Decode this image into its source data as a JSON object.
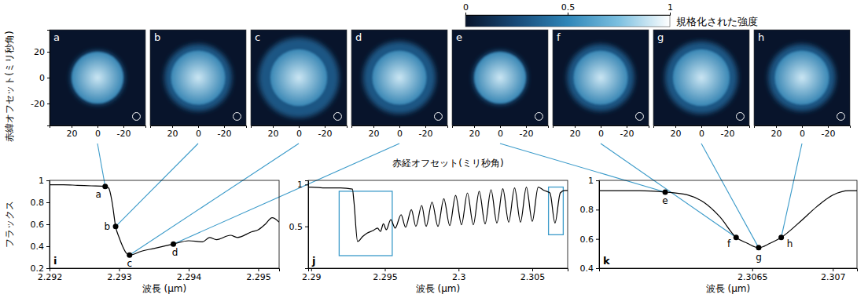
{
  "colorbar": {
    "label": "規格化された強度",
    "range": [
      0,
      1
    ],
    "ticks": [
      0,
      0.5,
      1
    ],
    "colors": [
      "#08142b",
      "#174a78",
      "#2f86b8",
      "#7cc0e0",
      "#ffffff"
    ]
  },
  "image_panels": {
    "x_label": "赤経オフセット(ミリ秒角)",
    "y_label": "赤緯オフセット(ミリ秒角)",
    "xlim": [
      37,
      -37
    ],
    "ylim": [
      -37,
      37
    ],
    "xticks": [
      20,
      0,
      -20
    ],
    "yticks": [
      20,
      0,
      -20
    ],
    "center_intensity": 0.9,
    "limb_intensity": 0.5,
    "halo_intensity": 0.3,
    "beam": {
      "x": -30,
      "y": -30,
      "radius": 3
    },
    "panels": [
      {
        "letter": "a",
        "disk_radius": 20,
        "halo_radius": 21
      },
      {
        "letter": "b",
        "disk_radius": 21,
        "halo_radius": 26
      },
      {
        "letter": "c",
        "disk_radius": 22,
        "halo_radius": 31
      },
      {
        "letter": "d",
        "disk_radius": 21,
        "halo_radius": 28
      },
      {
        "letter": "e",
        "disk_radius": 20,
        "halo_radius": 21
      },
      {
        "letter": "f",
        "disk_radius": 21,
        "halo_radius": 26
      },
      {
        "letter": "g",
        "disk_radius": 22,
        "halo_radius": 28
      },
      {
        "letter": "h",
        "disk_radius": 21,
        "halo_radius": 26
      }
    ]
  },
  "chart_data": [
    {
      "type": "line",
      "panel_label": "i",
      "x_label": "波長 (μm)",
      "y_label": "フラックス",
      "x": [
        2.292,
        2.2922,
        2.2924,
        2.2926,
        2.2928,
        2.29285,
        2.2929,
        2.29295,
        2.293,
        2.29305,
        2.2931,
        2.29315,
        2.2932,
        2.2933,
        2.2935,
        2.29378,
        2.294,
        2.2942,
        2.2943,
        2.2944,
        2.2946,
        2.2947,
        2.2949,
        2.295,
        2.2951,
        2.2952,
        2.2953
      ],
      "series": [
        {
          "color": "#000000",
          "values": [
            0.96,
            0.96,
            0.955,
            0.95,
            0.945,
            0.93,
            0.8,
            0.58,
            0.48,
            0.4,
            0.34,
            0.32,
            0.325,
            0.35,
            0.38,
            0.42,
            0.45,
            0.44,
            0.48,
            0.46,
            0.5,
            0.48,
            0.53,
            0.55,
            0.6,
            0.66,
            0.62
          ]
        }
      ],
      "xlim": [
        2.292,
        2.2953
      ],
      "ylim": [
        0.2,
        1
      ],
      "xticks": [
        2.292,
        2.293,
        2.294,
        2.295
      ],
      "yticks": [
        0.2,
        0.4,
        0.6,
        0.8,
        1
      ],
      "points": [
        {
          "label": "a",
          "x": 2.2928,
          "y": 0.945
        },
        {
          "label": "b",
          "x": 2.29295,
          "y": 0.58
        },
        {
          "label": "c",
          "x": 2.29315,
          "y": 0.32
        },
        {
          "label": "d",
          "x": 2.29378,
          "y": 0.42
        }
      ]
    },
    {
      "type": "line",
      "panel_label": "j",
      "x_label": "波長 (μm)",
      "x": [
        2.2898,
        2.29,
        2.291,
        2.292,
        2.2928,
        2.2929,
        2.29315,
        2.2935,
        2.2938,
        2.2942,
        2.2945,
        2.2947,
        2.2949,
        2.2951,
        2.2954,
        2.2957,
        2.2961,
        2.2964,
        2.2968,
        2.2971,
        2.2975,
        2.2978,
        2.2982,
        2.2986,
        2.299,
        2.2994,
        2.2998,
        2.3002,
        2.3006,
        2.301,
        2.3014,
        2.3018,
        2.3022,
        2.3026,
        2.303,
        2.3034,
        2.3038,
        2.3042,
        2.3046,
        2.305,
        2.3054,
        2.3058,
        2.3062,
        2.30654,
        2.3069,
        2.3072,
        2.3074
      ],
      "series": [
        {
          "color": "#000000",
          "values": [
            0.97,
            0.97,
            0.96,
            0.96,
            0.945,
            0.8,
            0.32,
            0.38,
            0.42,
            0.45,
            0.48,
            0.44,
            0.53,
            0.46,
            0.58,
            0.48,
            0.64,
            0.49,
            0.7,
            0.5,
            0.75,
            0.5,
            0.79,
            0.5,
            0.83,
            0.51,
            0.87,
            0.52,
            0.9,
            0.52,
            0.92,
            0.53,
            0.94,
            0.54,
            0.95,
            0.55,
            0.96,
            0.55,
            0.97,
            0.56,
            0.97,
            0.93,
            0.9,
            0.54,
            0.9,
            0.93,
            0.93
          ]
        }
      ],
      "xlim": [
        2.2898,
        2.3074
      ],
      "ylim": [
        0,
        1.05
      ],
      "xticks": [
        2.29,
        2.295,
        2.3,
        2.305
      ],
      "yticks": [
        0.5,
        1
      ],
      "highlight_boxes": [
        {
          "x": [
            2.2919,
            2.2955
          ],
          "y": [
            0.15,
            0.92
          ]
        },
        {
          "x": [
            2.3061,
            2.3071
          ],
          "y": [
            0.4,
            0.97
          ]
        }
      ],
      "points": []
    },
    {
      "type": "line",
      "panel_label": "k",
      "x_label": "波長 (μm)",
      "x": [
        2.30555,
        2.3058,
        2.30596,
        2.3061,
        2.3062,
        2.3063,
        2.3064,
        2.30647,
        2.30654,
        2.30661,
        2.30668,
        2.3068,
        2.3069,
        2.307,
        2.3071,
        2.30715
      ],
      "series": [
        {
          "color": "#000000",
          "values": [
            0.93,
            0.93,
            0.92,
            0.9,
            0.85,
            0.75,
            0.61,
            0.57,
            0.54,
            0.57,
            0.61,
            0.72,
            0.82,
            0.9,
            0.93,
            0.93
          ]
        }
      ],
      "xlim": [
        2.30555,
        2.30715
      ],
      "ylim": [
        0.4,
        1
      ],
      "xticks": [
        2.3065,
        2.307
      ],
      "yticks": [
        0.4,
        0.6,
        0.8,
        1
      ],
      "points": [
        {
          "label": "e",
          "x": 2.30596,
          "y": 0.92
        },
        {
          "label": "f",
          "x": 2.3064,
          "y": 0.61
        },
        {
          "label": "g",
          "x": 2.30654,
          "y": 0.54
        },
        {
          "label": "h",
          "x": 2.30668,
          "y": 0.61
        }
      ]
    }
  ]
}
